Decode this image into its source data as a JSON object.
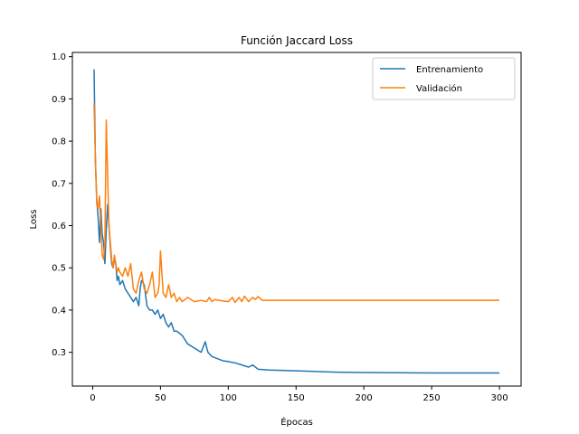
{
  "chart_data": {
    "type": "line",
    "title": "Función Jaccard Loss",
    "xlabel": "Épocas",
    "ylabel": "Loss",
    "xlim": [
      -15,
      316
    ],
    "ylim": [
      0.22,
      1.01
    ],
    "xticks": [
      0,
      50,
      100,
      150,
      200,
      250,
      300
    ],
    "yticks": [
      0.3,
      0.4,
      0.5,
      0.6,
      0.7,
      0.8,
      0.9,
      1.0
    ],
    "xtick_labels": [
      "0",
      "50",
      "100",
      "150",
      "200",
      "250",
      "300"
    ],
    "ytick_labels": [
      "0.3",
      "0.4",
      "0.5",
      "0.6",
      "0.7",
      "0.8",
      "0.9",
      "1.0"
    ],
    "grid": false,
    "legend_position": "top-right",
    "series": [
      {
        "name": "Entrenamiento",
        "color": "#1f77b4",
        "x": [
          1,
          2,
          3,
          4,
          5,
          6,
          7,
          8,
          9,
          10,
          11,
          12,
          13,
          14,
          15,
          16,
          17,
          18,
          19,
          20,
          22,
          24,
          26,
          28,
          30,
          32,
          34,
          35,
          36,
          38,
          40,
          42,
          44,
          46,
          48,
          50,
          52,
          54,
          56,
          58,
          60,
          62,
          64,
          66,
          70,
          75,
          80,
          83,
          85,
          88,
          92,
          96,
          100,
          105,
          110,
          115,
          118,
          122,
          130,
          150,
          180,
          200,
          250,
          300
        ],
        "values": [
          0.97,
          0.75,
          0.66,
          0.62,
          0.56,
          0.64,
          0.58,
          0.56,
          0.51,
          0.59,
          0.65,
          0.6,
          0.55,
          0.51,
          0.5,
          0.52,
          0.51,
          0.47,
          0.48,
          0.46,
          0.47,
          0.45,
          0.44,
          0.43,
          0.42,
          0.43,
          0.41,
          0.45,
          0.47,
          0.46,
          0.41,
          0.4,
          0.4,
          0.39,
          0.4,
          0.38,
          0.39,
          0.37,
          0.36,
          0.37,
          0.35,
          0.35,
          0.345,
          0.34,
          0.32,
          0.31,
          0.3,
          0.325,
          0.3,
          0.29,
          0.285,
          0.28,
          0.278,
          0.275,
          0.27,
          0.265,
          0.27,
          0.26,
          0.258,
          0.256,
          0.253,
          0.252,
          0.251,
          0.251
        ]
      },
      {
        "name": "Validación",
        "color": "#ff7f0e",
        "x": [
          1,
          2,
          3,
          4,
          5,
          6,
          7,
          8,
          9,
          10,
          11,
          12,
          13,
          14,
          15,
          16,
          17,
          18,
          19,
          20,
          22,
          24,
          26,
          28,
          30,
          32,
          34,
          36,
          38,
          40,
          42,
          44,
          46,
          48,
          49,
          50,
          52,
          54,
          56,
          58,
          60,
          62,
          64,
          66,
          70,
          75,
          80,
          84,
          86,
          88,
          90,
          95,
          100,
          103,
          105,
          108,
          110,
          112,
          115,
          118,
          120,
          122,
          125,
          150,
          200,
          250,
          300
        ],
        "values": [
          0.89,
          0.76,
          0.65,
          0.64,
          0.67,
          0.6,
          0.53,
          0.52,
          0.56,
          0.85,
          0.72,
          0.6,
          0.56,
          0.52,
          0.5,
          0.53,
          0.51,
          0.49,
          0.5,
          0.49,
          0.48,
          0.5,
          0.48,
          0.51,
          0.45,
          0.44,
          0.47,
          0.49,
          0.45,
          0.44,
          0.46,
          0.49,
          0.43,
          0.44,
          0.46,
          0.54,
          0.44,
          0.43,
          0.46,
          0.43,
          0.44,
          0.42,
          0.43,
          0.42,
          0.43,
          0.42,
          0.423,
          0.42,
          0.43,
          0.42,
          0.425,
          0.422,
          0.42,
          0.43,
          0.418,
          0.43,
          0.42,
          0.433,
          0.42,
          0.43,
          0.425,
          0.432,
          0.423,
          0.423,
          0.423,
          0.423,
          0.423
        ]
      }
    ]
  }
}
